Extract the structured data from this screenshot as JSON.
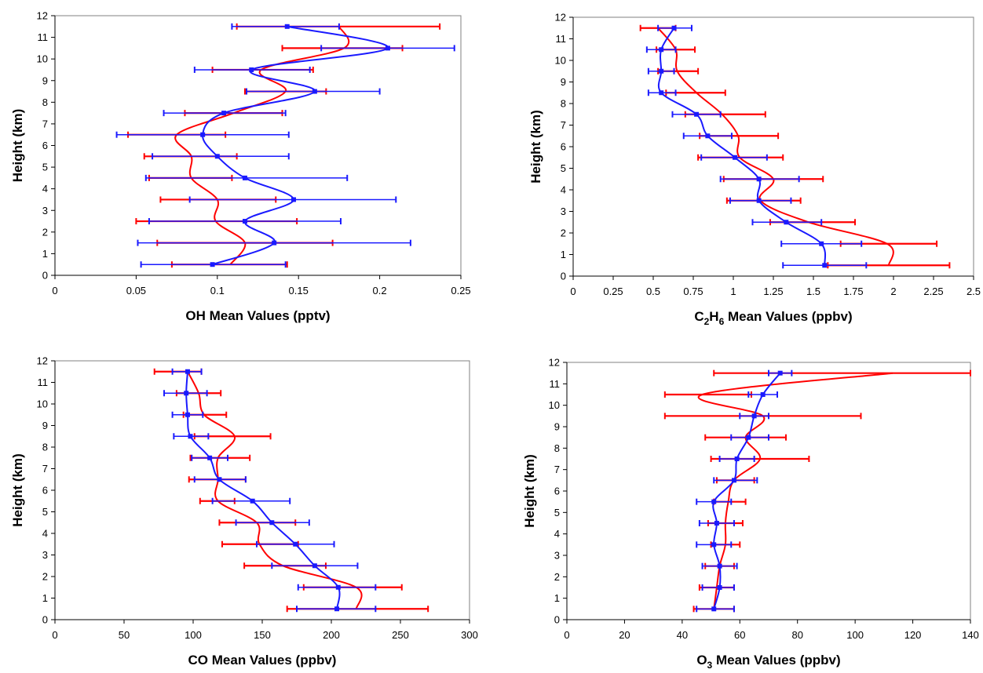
{
  "colors": {
    "red": "#ff0000",
    "blue": "#1a1aff",
    "axis": "#808080",
    "frame": "#000000"
  },
  "chart_data": [
    {
      "type": "line",
      "ylabel": "Height (km)",
      "xlabel": {
        "prefix": "OH",
        "rest": " Mean Values (pptv)"
      },
      "xlim": [
        0,
        0.25
      ],
      "ylim": [
        0,
        12
      ],
      "xticks": [
        0,
        0.05,
        0.1,
        0.15,
        0.2,
        0.25
      ],
      "xtick_labels": [
        "0",
        "0.05",
        "0.1",
        "0.15",
        "0.2",
        "0.25"
      ],
      "yticks": [
        0,
        1,
        2,
        3,
        4,
        5,
        6,
        7,
        8,
        9,
        10,
        11,
        12
      ],
      "grid": false,
      "series": [
        {
          "color": "red",
          "height": [
            0.5,
            1.5,
            2.5,
            3.5,
            4.5,
            5.5,
            6.5,
            7.5,
            8.5,
            9.5,
            10.5,
            11.5
          ],
          "mean": [
            0.108,
            0.117,
            0.099,
            0.1,
            0.084,
            0.084,
            0.075,
            0.11,
            0.142,
            0.127,
            0.178,
            0.175
          ],
          "err_low": [
            0.072,
            0.063,
            0.05,
            0.065,
            0.058,
            0.055,
            0.045,
            0.08,
            0.117,
            0.097,
            0.14,
            0.112
          ],
          "err_high": [
            0.143,
            0.171,
            0.149,
            0.136,
            0.109,
            0.112,
            0.105,
            0.14,
            0.167,
            0.159,
            0.214,
            0.237
          ]
        },
        {
          "color": "blue",
          "height": [
            0.5,
            1.5,
            2.5,
            3.5,
            4.5,
            5.5,
            6.5,
            7.5,
            8.5,
            9.5,
            10.5,
            11.5
          ],
          "mean": [
            0.097,
            0.135,
            0.117,
            0.147,
            0.117,
            0.1,
            0.091,
            0.104,
            0.16,
            0.121,
            0.205,
            0.143
          ],
          "err_low": [
            0.053,
            0.051,
            0.058,
            0.083,
            0.056,
            0.06,
            0.038,
            0.067,
            0.118,
            0.086,
            0.164,
            0.109
          ],
          "err_high": [
            0.142,
            0.219,
            0.176,
            0.21,
            0.18,
            0.144,
            0.144,
            0.142,
            0.2,
            0.157,
            0.246,
            0.175
          ]
        }
      ]
    },
    {
      "type": "line",
      "ylabel": "Height (km)",
      "xlabel": {
        "prefix": "C",
        "sub1": "2",
        "mid": "H",
        "sub2": "6",
        "rest": " Mean Values (ppbv)"
      },
      "xlim": [
        0,
        2.5
      ],
      "ylim": [
        0,
        12
      ],
      "xticks": [
        0,
        0.25,
        0.5,
        0.75,
        1,
        1.25,
        1.5,
        1.75,
        2,
        2.25,
        2.5
      ],
      "xtick_labels": [
        "0",
        "0.25",
        "0.5",
        "0.75",
        "1",
        "1.25",
        "1.5",
        "1.75",
        "2",
        "2.25",
        "2.5"
      ],
      "yticks": [
        0,
        1,
        2,
        3,
        4,
        5,
        6,
        7,
        8,
        9,
        10,
        11,
        12
      ],
      "grid": false,
      "series": [
        {
          "color": "red",
          "height": [
            0.5,
            1.5,
            2.5,
            3.5,
            4.5,
            5.5,
            6.5,
            7.5,
            8.5,
            9.5,
            10.5,
            11.5
          ],
          "mean": [
            1.97,
            1.96,
            1.47,
            1.17,
            1.25,
            1.04,
            1.03,
            0.93,
            0.77,
            0.65,
            0.64,
            0.53
          ],
          "err_low": [
            1.59,
            1.67,
            1.23,
            0.96,
            0.94,
            0.78,
            0.79,
            0.7,
            0.58,
            0.53,
            0.52,
            0.42
          ],
          "err_high": [
            2.35,
            2.27,
            1.76,
            1.42,
            1.56,
            1.31,
            1.28,
            1.2,
            0.95,
            0.78,
            0.76,
            0.64
          ]
        },
        {
          "color": "blue",
          "height": [
            0.5,
            1.5,
            2.5,
            3.5,
            4.5,
            5.5,
            6.5,
            7.5,
            8.5,
            9.5,
            10.5,
            11.5
          ],
          "mean": [
            1.57,
            1.55,
            1.33,
            1.16,
            1.16,
            1.01,
            0.84,
            0.77,
            0.55,
            0.55,
            0.55,
            0.63
          ],
          "err_low": [
            1.31,
            1.3,
            1.12,
            0.98,
            0.92,
            0.8,
            0.69,
            0.62,
            0.47,
            0.47,
            0.46,
            0.53
          ],
          "err_high": [
            1.83,
            1.8,
            1.55,
            1.36,
            1.41,
            1.21,
            0.99,
            0.92,
            0.64,
            0.63,
            0.64,
            0.74
          ]
        }
      ]
    },
    {
      "type": "line",
      "ylabel": "Height (km)",
      "xlabel": {
        "prefix": "CO",
        "rest": " Mean Values (ppbv)"
      },
      "xlim": [
        0,
        300
      ],
      "ylim": [
        0,
        12
      ],
      "xticks": [
        0,
        50,
        100,
        150,
        200,
        250,
        300
      ],
      "xtick_labels": [
        "0",
        "50",
        "100",
        "150",
        "200",
        "250",
        "300"
      ],
      "yticks": [
        0,
        1,
        2,
        3,
        4,
        5,
        6,
        7,
        8,
        9,
        10,
        11,
        12
      ],
      "grid": false,
      "series": [
        {
          "color": "red",
          "height": [
            0.5,
            1.5,
            2.5,
            3.5,
            4.5,
            5.5,
            6.5,
            7.5,
            8.5,
            9.5,
            10.5,
            11.5
          ],
          "mean": [
            218,
            218,
            165,
            148,
            146,
            118,
            118,
            118,
            130,
            108,
            104,
            96
          ],
          "err_low": [
            168,
            180,
            137,
            121,
            119,
            105,
            97,
            98,
            101,
            93,
            88,
            72
          ],
          "err_high": [
            270,
            251,
            196,
            176,
            174,
            130,
            138,
            141,
            156,
            124,
            120,
            106
          ]
        },
        {
          "color": "blue",
          "height": [
            0.5,
            1.5,
            2.5,
            3.5,
            4.5,
            5.5,
            6.5,
            7.5,
            8.5,
            9.5,
            10.5,
            11.5
          ],
          "mean": [
            204,
            205,
            188,
            174,
            157,
            143,
            119,
            112,
            98,
            96,
            95,
            96
          ],
          "err_low": [
            175,
            176,
            157,
            146,
            131,
            114,
            101,
            99,
            86,
            85,
            79,
            85
          ],
          "err_high": [
            232,
            232,
            219,
            202,
            184,
            170,
            138,
            125,
            111,
            107,
            110,
            106
          ]
        }
      ]
    },
    {
      "type": "line",
      "ylabel": "Height (km)",
      "xlabel": {
        "prefix": "O",
        "sub1": "3",
        "rest": " Mean Values (ppbv)"
      },
      "xlim": [
        0,
        140
      ],
      "ylim": [
        0,
        12
      ],
      "xticks": [
        0,
        20,
        40,
        60,
        80,
        100,
        120,
        140
      ],
      "xtick_labels": [
        "0",
        "20",
        "40",
        "60",
        "80",
        "100",
        "120",
        "140"
      ],
      "yticks": [
        0,
        1,
        2,
        3,
        4,
        5,
        6,
        7,
        8,
        9,
        10,
        11,
        12
      ],
      "grid": false,
      "series": [
        {
          "color": "red",
          "height": [
            0.5,
            1.5,
            2.5,
            3.5,
            4.5,
            5.5,
            6.5,
            7.5,
            8.5,
            9.5,
            10.5,
            11.5
          ],
          "mean": [
            51,
            52,
            53,
            55,
            55,
            56,
            58,
            67,
            62,
            68,
            47,
            113
          ],
          "err_low": [
            44,
            46,
            48,
            50,
            49,
            51,
            52,
            50,
            48,
            34,
            34,
            51
          ],
          "err_high": [
            58,
            58,
            58,
            60,
            61,
            62,
            65,
            84,
            76,
            102,
            64,
            140
          ]
        },
        {
          "color": "blue",
          "height": [
            0.5,
            1.5,
            2.5,
            3.5,
            4.5,
            5.5,
            6.5,
            7.5,
            8.5,
            9.5,
            10.5,
            11.5
          ],
          "mean": [
            51,
            53,
            53,
            51,
            52,
            51,
            58,
            59,
            63,
            65,
            68,
            74
          ],
          "err_low": [
            45,
            47,
            47,
            45,
            46,
            45,
            51,
            53,
            57,
            60,
            63,
            70
          ],
          "err_high": [
            58,
            58,
            59,
            57,
            58,
            57,
            66,
            65,
            70,
            70,
            73,
            78
          ]
        }
      ]
    }
  ]
}
